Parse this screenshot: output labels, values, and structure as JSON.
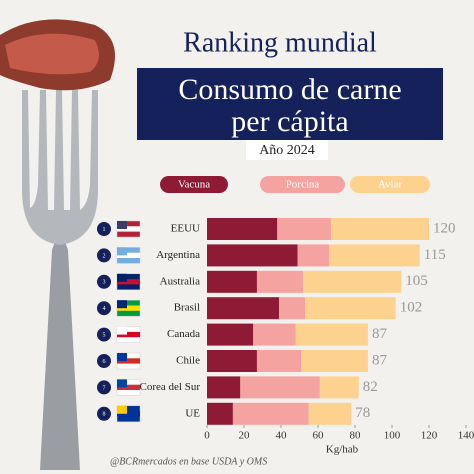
{
  "chart_data": {
    "type": "stacked_barh",
    "title": "Ranking mundial",
    "subtitle_lines": [
      "Consumo de carne",
      "per cápita"
    ],
    "year_label": "Año 2024",
    "categories": [
      "EEUU",
      "Argentina",
      "Australia",
      "Brasil",
      "Canada",
      "Chile",
      "Corea del Sur",
      "UE"
    ],
    "ranks": [
      1,
      2,
      3,
      4,
      5,
      6,
      7,
      8
    ],
    "series": [
      {
        "name": "Vacuna",
        "color": "#8e1a35",
        "values": [
          38,
          49,
          27,
          39,
          25,
          27,
          18,
          14
        ]
      },
      {
        "name": "Porcina",
        "color": "#f5a3a0",
        "values": [
          29,
          17,
          25,
          14,
          23,
          24,
          43,
          41
        ]
      },
      {
        "name": "Aviar",
        "color": "#fdd28f",
        "values": [
          53,
          49,
          53,
          49,
          39,
          36,
          21,
          23
        ]
      }
    ],
    "totals": [
      120,
      115,
      105,
      102,
      87,
      87,
      82,
      78
    ],
    "xlim": [
      0,
      140
    ],
    "xticks": [
      0,
      20,
      40,
      60,
      80,
      100,
      120,
      140
    ],
    "x_label": "Kg/hab",
    "source": "@BCRmercados en base  USDA y OMS"
  }
}
